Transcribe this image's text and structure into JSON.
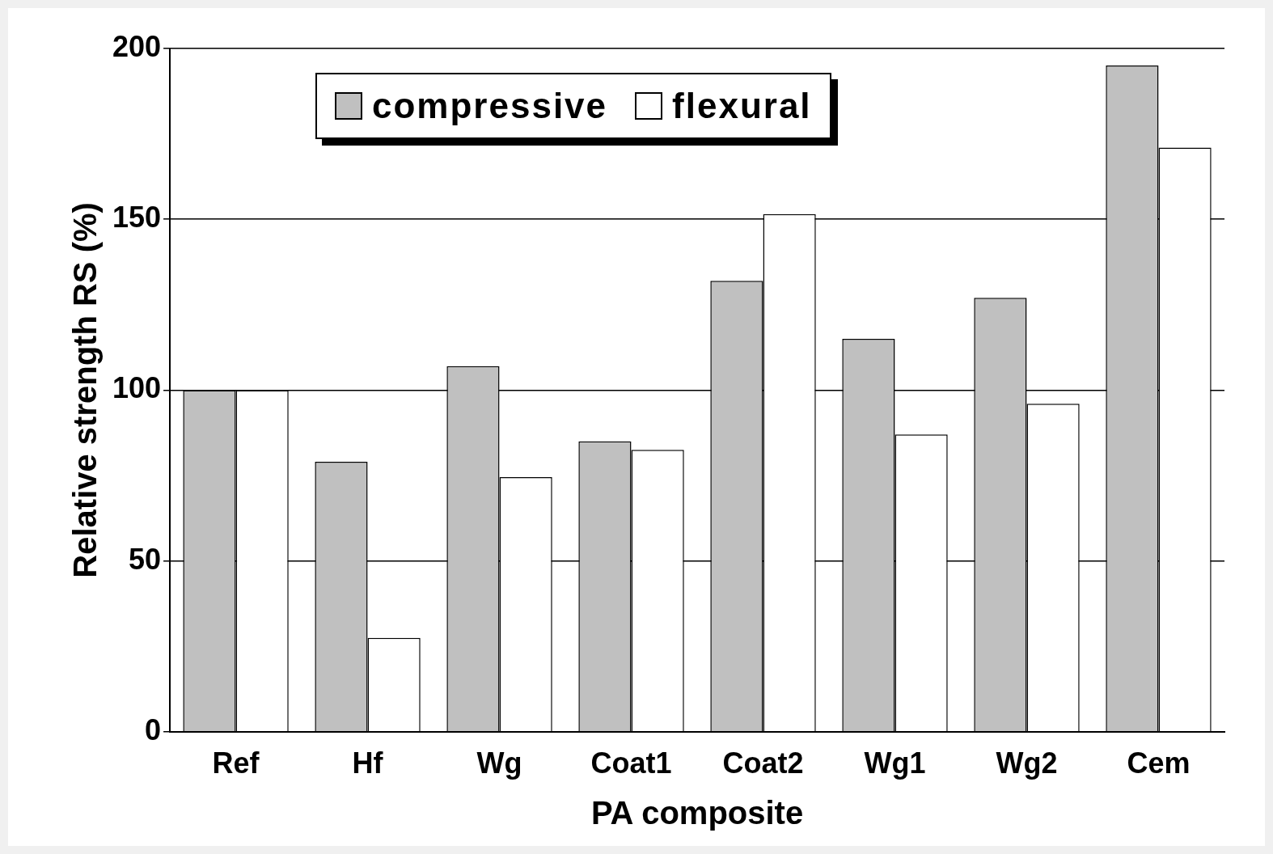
{
  "chart_data": {
    "type": "bar",
    "xlabel": "PA composite",
    "ylabel": "Relative strength RS (%)",
    "categories": [
      "Ref",
      "Hf",
      "Wg",
      "Coat1",
      "Coat2",
      "Wg1",
      "Wg2",
      "Cem"
    ],
    "series": [
      {
        "name": "compressive",
        "color": "#c0c0c0",
        "values": [
          100,
          79,
          107,
          85,
          132,
          115,
          127,
          195
        ]
      },
      {
        "name": "flexural",
        "color": "#ffffff",
        "values": [
          100,
          27.5,
          74.5,
          82.5,
          151.5,
          87,
          96,
          171
        ]
      }
    ],
    "ylim": [
      0,
      200
    ],
    "yticks": [
      0,
      50,
      100,
      150,
      200
    ],
    "grid": "y",
    "legend": "top left"
  }
}
